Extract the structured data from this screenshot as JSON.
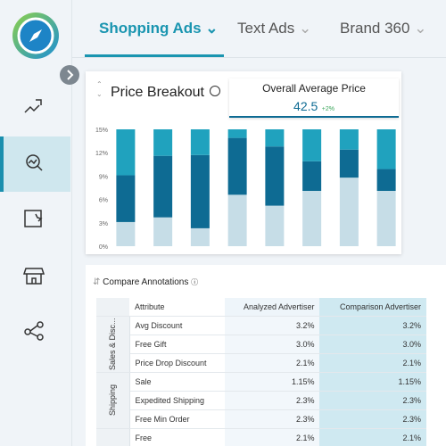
{
  "tabs": [
    "Shopping Ads",
    "Text Ads",
    "Brand 360"
  ],
  "chart_data": {
    "type": "bar",
    "stacked": true,
    "title": "Price Breakout",
    "categories": [
      null,
      null,
      null,
      null,
      null,
      null,
      null,
      null
    ],
    "series": [
      {
        "color": "#c6dde7",
        "values": [
          3.1,
          3.7,
          2.3,
          6.6,
          5.2,
          7.1,
          8.8,
          7.1
        ]
      },
      {
        "color": "#0e6b93",
        "values": [
          6.0,
          7.9,
          9.4,
          7.3,
          7.6,
          3.8,
          3.6,
          2.8
        ]
      },
      {
        "color": "#20a2be",
        "values": [
          5.9,
          3.4,
          3.3,
          1.1,
          2.2,
          4.1,
          2.6,
          5.1
        ]
      }
    ],
    "ylim": [
      0,
      15
    ],
    "yticks": [
      {
        "value": 0,
        "label": "0%"
      },
      {
        "value": 3,
        "label": "3%"
      },
      {
        "value": 6,
        "label": "6%"
      },
      {
        "value": 9,
        "label": "9%"
      },
      {
        "value": 12,
        "label": "12%"
      },
      {
        "value": 15,
        "label": "15%"
      }
    ],
    "grid": false
  },
  "kpi": {
    "label": "Overall Average Price",
    "value": "42.5",
    "change": "+2%"
  },
  "annotations": {
    "title": "Compare Annotations",
    "headers": [
      "Attribute",
      "Analyzed Advertiser",
      "Comparison Advertiser"
    ],
    "groups": [
      {
        "label": "Sales & Disc...",
        "rows": [
          [
            "Avg Discount",
            "3.2%",
            "3.2%"
          ],
          [
            "Free Gift",
            "3.0%",
            "3.0%"
          ],
          [
            "Price Drop Discount",
            "2.1%",
            "2.1%"
          ]
        ]
      },
      {
        "label": "Shipping",
        "rows": [
          [
            "Sale",
            "1.15%",
            "1.15%"
          ],
          [
            "Expedited Shipping",
            "2.3%",
            "2.3%"
          ],
          [
            "Free Min Order",
            "2.3%",
            "2.3%"
          ]
        ]
      },
      {
        "label": null,
        "rows": [
          [
            "Free",
            "2.1%",
            "2.1%"
          ]
        ]
      }
    ]
  }
}
